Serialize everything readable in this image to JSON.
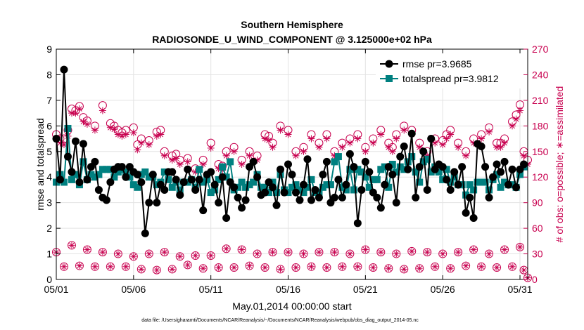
{
  "chart_data": {
    "type": "line",
    "title": [
      "Southern Hemisphere",
      "RADIOSONDE_U_WIND_COMPONENT @ 3.125000e+02 hPa"
    ],
    "xlabel": "May.01,2014 00:00:00 start",
    "ylabel": "rmse and totalspread",
    "ylabel_right": "# of obs: o=possible; ∗=assimilated",
    "footnote": "data file: /Users/gharamti/Documents/NCAR/Reanalysis/~/Documents/NCAR/Reanalysis/webpub/obs_diag_output_2014-05.nc",
    "xlim": [
      1,
      31.5
    ],
    "ylim": [
      0,
      9
    ],
    "ylim_right": [
      0,
      270
    ],
    "x_ticks": [
      1,
      6,
      11,
      16,
      21,
      26,
      31
    ],
    "x_tick_labels": [
      "05/01",
      "05/06",
      "05/11",
      "05/16",
      "05/21",
      "05/26",
      "05/31"
    ],
    "y_ticks": [
      0,
      1,
      2,
      3,
      4,
      5,
      6,
      7,
      8,
      9
    ],
    "y_ticks_right": [
      0,
      30,
      60,
      90,
      120,
      150,
      180,
      210,
      240,
      270
    ],
    "grid": true,
    "legend_position": "top-right",
    "colors": {
      "rmse": "#000000",
      "spread": "#008080",
      "obs": "#c8004f"
    },
    "x_step_days": 0.25,
    "series": [
      {
        "name": "rmse pr=3.9685",
        "marker": "circle",
        "color": "#000000",
        "values": [
          5.5,
          3.9,
          8.2,
          4.8,
          4.2,
          5.4,
          3.8,
          5.3,
          3.9,
          4.4,
          4.6,
          3.5,
          3.2,
          3.1,
          3.8,
          4.3,
          4.4,
          4.4,
          4.0,
          4.4,
          4.2,
          4.1,
          3.8,
          1.8,
          3.0,
          4.1,
          3.0,
          3.7,
          3.5,
          4.2,
          4.2,
          3.9,
          3.3,
          3.8,
          4.3,
          3.9,
          3.5,
          3.9,
          2.7,
          4.1,
          4.2,
          3.7,
          3.0,
          4.0,
          2.4,
          3.8,
          3.6,
          3.2,
          2.8,
          3.1,
          4.4,
          4.6,
          4.0,
          3.3,
          3.4,
          3.8,
          3.6,
          2.9,
          4.3,
          3.4,
          4.5,
          4.1,
          3.4,
          3.1,
          3.7,
          4.7,
          3.1,
          3.5,
          3.2,
          4.1,
          4.6,
          3.0,
          3.2,
          3.9,
          3.2,
          3.7,
          4.9,
          4.4,
          2.2,
          3.5,
          4.6,
          4.2,
          3.4,
          3.2,
          2.8,
          3.7,
          4.4,
          4.1,
          3.0,
          4.8,
          5.2,
          4.3,
          5.7,
          3.2,
          4.4,
          5.0,
          3.5,
          5.5,
          4.3,
          4.5,
          4.4,
          3.9,
          3.5,
          4.2,
          3.7,
          4.4,
          2.6,
          3.2,
          2.4,
          5.3,
          5.2,
          4.4,
          3.2,
          4.0,
          4.5,
          4.2,
          4.6,
          3.7,
          4.3,
          3.6,
          4.3,
          4.5
        ]
      },
      {
        "name": "totalspread pr=3.9812",
        "marker": "square",
        "color": "#008080",
        "values": [
          3.8,
          4.1,
          3.8,
          5.9,
          3.9,
          4.1,
          3.7,
          4.6,
          3.9,
          4.1,
          4.0,
          4.1,
          4.3,
          4.3,
          4.3,
          4.0,
          4.2,
          4.3,
          4.2,
          4.0,
          3.7,
          3.6,
          4.1,
          4.2,
          4.0,
          4.0,
          3.7,
          3.8,
          4.2,
          3.9,
          3.6,
          3.8,
          3.5,
          3.8,
          3.8,
          3.9,
          3.6,
          4.3,
          3.8,
          3.9,
          3.4,
          3.5,
          3.9,
          4.4,
          4.0,
          4.6,
          3.5,
          3.6,
          3.8,
          3.6,
          3.7,
          3.8,
          4.1,
          3.6,
          3.6,
          3.4,
          3.8,
          3.4,
          4.1,
          3.5,
          3.4,
          3.6,
          3.7,
          3.5,
          3.4,
          3.6,
          3.9,
          3.4,
          3.4,
          3.6,
          3.7,
          3.7,
          4.6,
          4.8,
          3.6,
          3.5,
          4.3,
          3.5,
          4.3,
          4.2,
          4.0,
          3.6,
          3.9,
          3.9,
          4.3,
          4.4,
          3.6,
          4.5,
          4.2,
          4.4,
          4.3,
          4.6,
          4.8,
          4.2,
          3.8,
          4.6,
          4.7,
          4.2,
          4.4,
          4.2,
          3.9,
          4.3,
          3.8,
          4.0,
          3.7,
          3.7,
          3.3,
          3.7,
          3.5,
          3.8,
          3.8,
          3.8,
          3.5,
          3.9,
          4.1,
          3.6,
          3.8,
          3.7,
          3.7,
          3.6,
          4.1,
          4.4
        ]
      },
      {
        "name": "possible",
        "marker": "open-circle",
        "axis": "right",
        "color": "#c8004f",
        "x": [
          1.0,
          1.25,
          1.5,
          1.75,
          2.0,
          2.25,
          2.5,
          2.75,
          3.0,
          3.5,
          4.0,
          4.5,
          4.75,
          5.0,
          5.25,
          5.5,
          6.0,
          6.25,
          6.5,
          7.0,
          7.5,
          7.75,
          8.0,
          8.5,
          8.75,
          9.0,
          9.5,
          10.0,
          10.5,
          11.0,
          11.5,
          11.75,
          12.0,
          12.5,
          13.0,
          13.5,
          14.0,
          14.5,
          14.75,
          15.0,
          15.5,
          16.0,
          16.5,
          17.0,
          17.5,
          18.0,
          18.5,
          19.0,
          19.5,
          20.0,
          20.5,
          21.0,
          21.5,
          22.0,
          22.5,
          22.75,
          23.0,
          23.5,
          24.0,
          24.5,
          25.0,
          25.5,
          26.0,
          26.25,
          26.5,
          27.0,
          27.5,
          28.0,
          28.5,
          29.0,
          29.5,
          29.75,
          30.0,
          30.5,
          30.75,
          31.0,
          31.25,
          31.5
        ],
        "values": [
          170,
          165,
          165,
          175,
          200,
          198,
          203,
          190,
          186,
          180,
          204,
          183,
          180,
          175,
          172,
          175,
          178,
          158,
          165,
          163,
          173,
          175,
          150,
          145,
          147,
          140,
          142,
          130,
          140,
          160,
          135,
          133,
          150,
          155,
          140,
          150,
          145,
          170,
          168,
          160,
          180,
          175,
          150,
          155,
          170,
          160,
          170,
          150,
          160,
          165,
          170,
          155,
          165,
          175,
          160,
          155,
          170,
          180,
          175,
          160,
          150,
          165,
          163,
          170,
          175,
          160,
          150,
          165,
          170,
          178,
          160,
          160,
          165,
          185,
          193,
          205,
          150,
          140
        ]
      },
      {
        "name": "assimilated",
        "marker": "asterisk",
        "axis": "right",
        "color": "#c8004f",
        "x": [
          1.0,
          1.25,
          1.5,
          1.75,
          2.0,
          2.25,
          2.5,
          2.75,
          3.0,
          3.5,
          4.0,
          4.5,
          4.75,
          5.0,
          5.25,
          5.5,
          6.0,
          6.25,
          6.5,
          7.0,
          7.5,
          7.75,
          8.0,
          8.5,
          8.75,
          9.0,
          9.5,
          10.0,
          10.5,
          11.0,
          11.5,
          11.75,
          12.0,
          12.5,
          13.0,
          13.5,
          14.0,
          14.5,
          14.75,
          15.0,
          15.5,
          16.0,
          16.5,
          17.0,
          17.5,
          18.0,
          18.5,
          19.0,
          19.5,
          20.0,
          20.5,
          21.0,
          21.5,
          22.0,
          22.5,
          22.75,
          23.0,
          23.5,
          24.0,
          24.5,
          25.0,
          25.5,
          26.0,
          26.25,
          26.5,
          27.0,
          27.5,
          28.0,
          28.5,
          29.0,
          29.5,
          29.75,
          30.0,
          30.5,
          30.75,
          31.0,
          31.25,
          31.5
        ],
        "values": [
          165,
          160,
          158,
          168,
          195,
          195,
          200,
          185,
          182,
          175,
          198,
          178,
          176,
          170,
          168,
          170,
          172,
          152,
          160,
          158,
          168,
          170,
          145,
          140,
          142,
          135,
          138,
          126,
          135,
          154,
          130,
          128,
          145,
          150,
          135,
          145,
          140,
          165,
          163,
          155,
          175,
          170,
          145,
          150,
          165,
          155,
          165,
          145,
          155,
          160,
          165,
          150,
          160,
          170,
          155,
          150,
          165,
          175,
          170,
          155,
          145,
          160,
          158,
          165,
          170,
          155,
          145,
          160,
          165,
          173,
          155,
          155,
          160,
          180,
          188,
          198,
          145,
          135
        ]
      },
      {
        "name": "possible-low",
        "marker": "open-circle",
        "axis": "right",
        "color": "#c8004f",
        "x": [
          1.0,
          1.5,
          2.0,
          2.5,
          3.0,
          3.5,
          4.0,
          4.5,
          5.0,
          5.5,
          6.0,
          6.5,
          7.0,
          7.5,
          8.0,
          8.5,
          9.0,
          9.5,
          10.0,
          10.5,
          11.0,
          11.5,
          12.0,
          12.5,
          13.0,
          13.5,
          14.0,
          14.5,
          15.0,
          15.5,
          16.0,
          16.5,
          17.0,
          17.5,
          18.0,
          18.5,
          19.0,
          19.5,
          20.0,
          20.5,
          21.0,
          21.5,
          22.0,
          22.5,
          23.0,
          23.5,
          24.0,
          24.5,
          25.0,
          25.5,
          26.0,
          26.5,
          27.0,
          27.5,
          28.0,
          28.5,
          29.0,
          29.5,
          30.0,
          30.5,
          31.0,
          31.25,
          31.5
        ],
        "values": [
          32,
          15,
          40,
          16,
          35,
          15,
          32,
          15,
          30,
          15,
          27,
          12,
          30,
          11,
          32,
          12,
          27,
          17,
          28,
          13,
          28,
          14,
          36,
          14,
          35,
          16,
          30,
          14,
          32,
          12,
          32,
          14,
          30,
          15,
          32,
          14,
          32,
          15,
          30,
          15,
          35,
          14,
          32,
          13,
          30,
          12,
          33,
          13,
          32,
          15,
          30,
          13,
          32,
          16,
          35,
          15,
          30,
          14,
          35,
          15,
          38,
          11,
          2
        ]
      }
    ]
  }
}
